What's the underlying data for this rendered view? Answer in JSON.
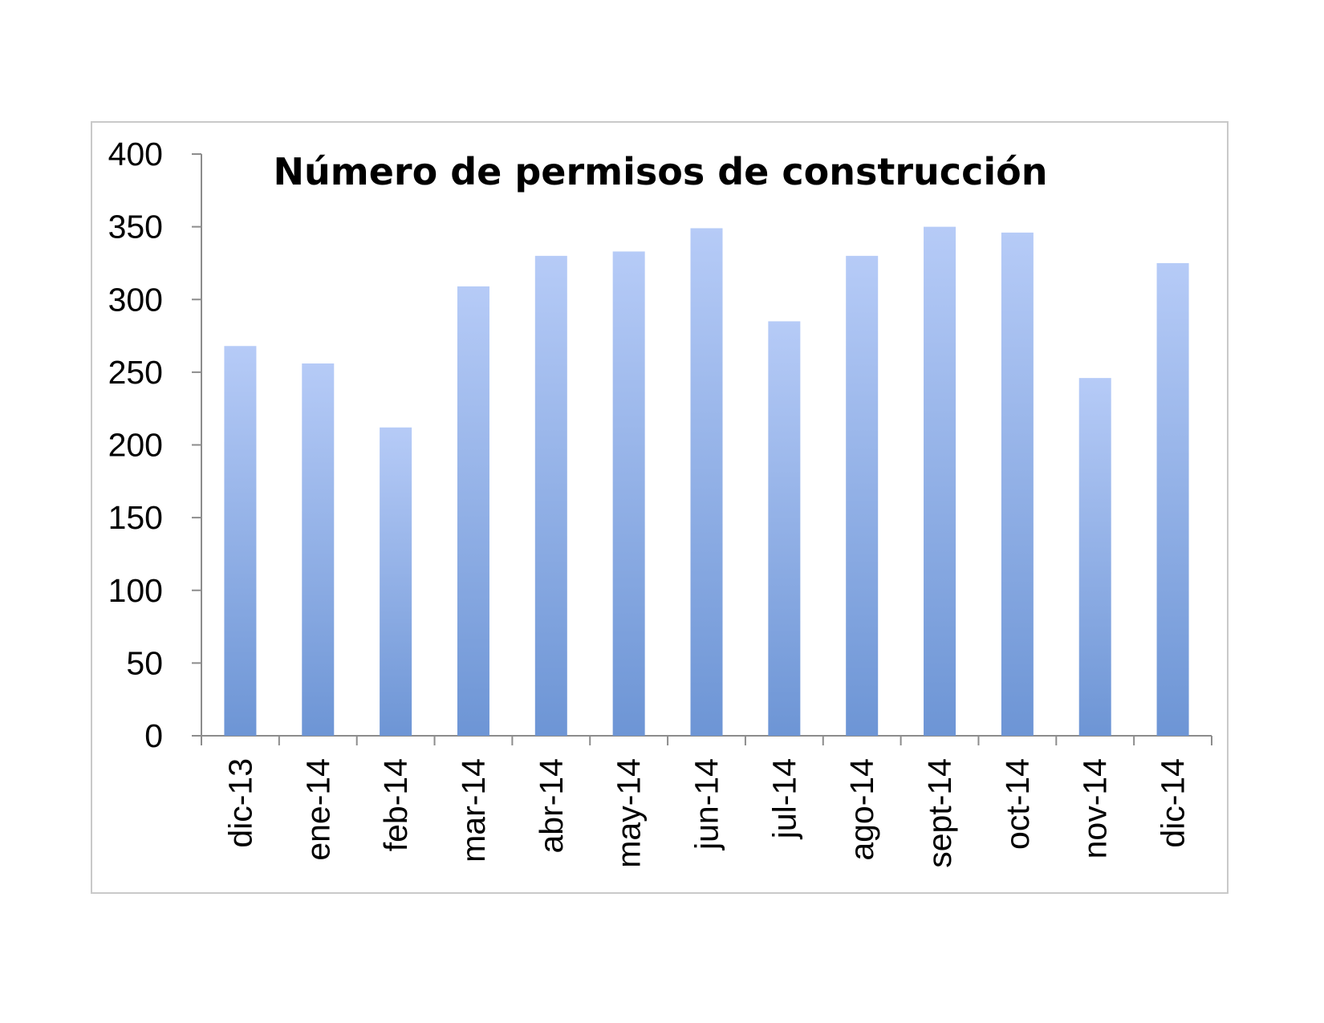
{
  "chart_data": {
    "type": "bar",
    "title": "Número de permisos de construcción",
    "xlabel": "",
    "ylabel": "",
    "categories": [
      "dic-13",
      "ene-14",
      "feb-14",
      "mar-14",
      "abr-14",
      "may-14",
      "jun-14",
      "jul-14",
      "ago-14",
      "sept-14",
      "oct-14",
      "nov-14",
      "dic-14"
    ],
    "values": [
      268,
      256,
      212,
      309,
      330,
      333,
      349,
      285,
      330,
      350,
      346,
      246,
      325
    ],
    "ylim": [
      0,
      400
    ],
    "yticks": [
      0,
      50,
      100,
      150,
      200,
      250,
      300,
      350,
      400
    ],
    "grid": false,
    "legend": "none",
    "bar_color_top": "#b6cbf7",
    "bar_color_bottom": "#6d95d5",
    "axis_color": "#8c8c8c"
  }
}
